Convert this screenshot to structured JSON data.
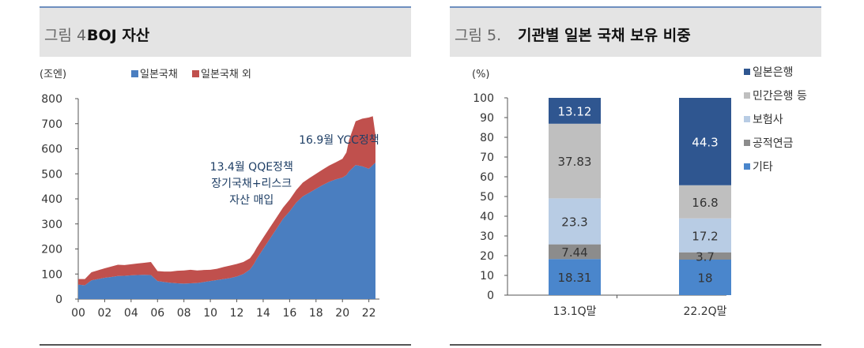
{
  "left": {
    "figure_number": "그림 4.",
    "figure_title": "BOJ 자산",
    "unit": "(조엔)",
    "chart_data": {
      "type": "area",
      "stacked": true,
      "xlabel": "",
      "ylabel": "",
      "xlim": [
        2000,
        2022.8
      ],
      "ylim": [
        0,
        800
      ],
      "yticks": [
        "0",
        "100",
        "200",
        "300",
        "400",
        "500",
        "600",
        "700",
        "800"
      ],
      "xticks": [
        "00",
        "02",
        "04",
        "06",
        "08",
        "10",
        "12",
        "14",
        "16",
        "18",
        "20",
        "22"
      ],
      "x": [
        2000,
        2000.5,
        2001,
        2001.5,
        2002,
        2002.5,
        2003,
        2003.5,
        2004,
        2004.5,
        2005,
        2005.5,
        2006,
        2006.5,
        2007,
        2007.5,
        2008,
        2008.5,
        2009,
        2009.5,
        2010,
        2010.5,
        2011,
        2011.5,
        2012,
        2012.5,
        2013,
        2013.3,
        2013.5,
        2014,
        2014.5,
        2015,
        2015.5,
        2016,
        2016.5,
        2017,
        2017.5,
        2018,
        2018.5,
        2019,
        2019.5,
        2020,
        2020.3,
        2020.5,
        2021,
        2021.5,
        2022,
        2022.3,
        2022.5
      ],
      "series": [
        {
          "name": "일본국채",
          "color": "#4a7ec0",
          "values": [
            58,
            55,
            75,
            80,
            85,
            88,
            92,
            93,
            95,
            96,
            97,
            96,
            72,
            68,
            65,
            63,
            62,
            63,
            64,
            68,
            72,
            76,
            80,
            84,
            90,
            100,
            118,
            140,
            160,
            200,
            240,
            280,
            320,
            350,
            385,
            410,
            425,
            440,
            455,
            468,
            478,
            485,
            495,
            510,
            535,
            530,
            520,
            535,
            545
          ]
        },
        {
          "name": "일본국채 외",
          "color": "#c0504d",
          "values": [
            22,
            25,
            32,
            35,
            38,
            42,
            45,
            43,
            44,
            46,
            48,
            52,
            40,
            42,
            45,
            50,
            52,
            54,
            50,
            48,
            45,
            45,
            48,
            50,
            50,
            48,
            45,
            45,
            44,
            45,
            45,
            45,
            45,
            47,
            50,
            55,
            58,
            60,
            62,
            65,
            68,
            75,
            90,
            125,
            175,
            190,
            205,
            195,
            110
          ]
        }
      ],
      "annotations": [
        {
          "text": "16.9월 YCC정책",
          "x": 2016.7,
          "y": 620
        },
        {
          "lines": [
            "13.4월 QQE정책",
            "장기국채+리스크",
            "자산 매입"
          ],
          "x": 2013.3,
          "y": 340
        }
      ]
    }
  },
  "right": {
    "figure_number": "그림 5.",
    "figure_title": "기관별 일본 국채 보유 비중",
    "unit": "(%)",
    "chart_data": {
      "type": "bar",
      "stacked": true,
      "categories": [
        "13.1Q말",
        "22.2Q말"
      ],
      "ylim": [
        0,
        100
      ],
      "yticks": [
        "0",
        "10",
        "20",
        "30",
        "40",
        "50",
        "60",
        "70",
        "80",
        "90",
        "100"
      ],
      "series": [
        {
          "name": "기타",
          "color": "#4a86cc",
          "values": [
            18.31,
            18
          ],
          "labels": [
            "18.31",
            "18"
          ]
        },
        {
          "name": "공적연금",
          "color": "#8c8c8c",
          "values": [
            7.44,
            3.7
          ],
          "labels": [
            "7.44",
            "3.7"
          ]
        },
        {
          "name": "보험사",
          "color": "#b8cce4",
          "values": [
            23.3,
            17.2
          ],
          "labels": [
            "23.3",
            "17.2"
          ]
        },
        {
          "name": "민간은행 등",
          "color": "#bfbfbf",
          "values": [
            37.83,
            16.8
          ],
          "labels": [
            "37.83",
            "16.8"
          ]
        },
        {
          "name": "일본은행",
          "color": "#2f5690",
          "values": [
            13.12,
            44.3
          ],
          "labels": [
            "13.12",
            "44.3"
          ]
        }
      ],
      "legend_order": [
        "일본은행",
        "민간은행 등",
        "보험사",
        "공적연금",
        "기타"
      ],
      "legend_position": "right"
    }
  }
}
